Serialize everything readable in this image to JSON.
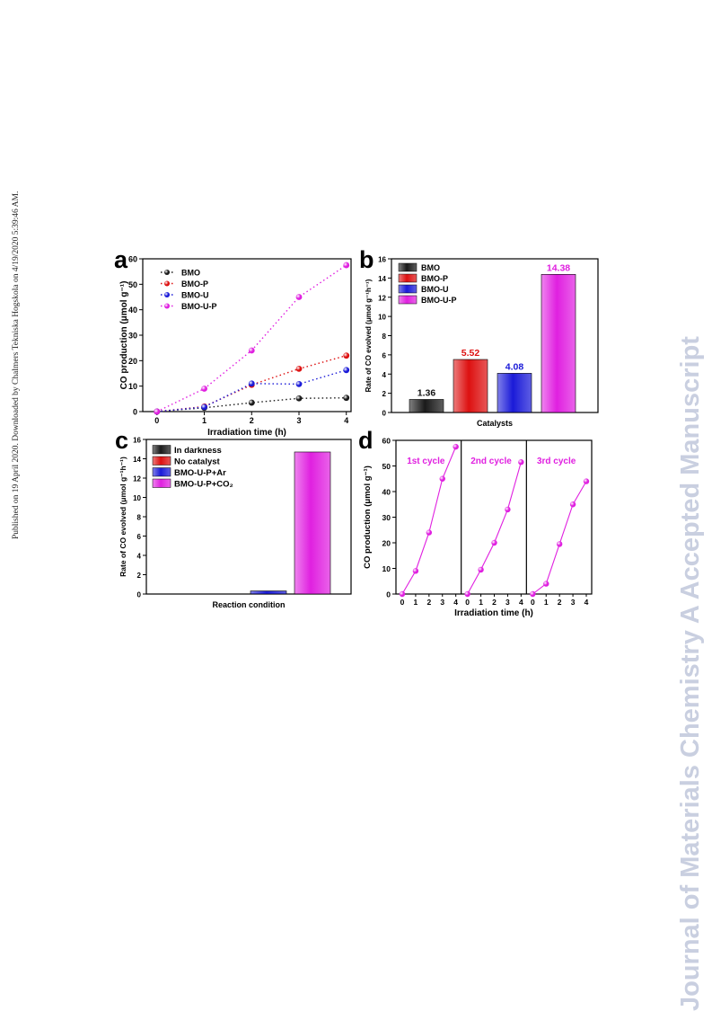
{
  "side_note": "Published on 19 April 2020. Downloaded by Chalmers Tekniska Hogskola on 4/19/2020 5:39:46 AM.",
  "watermark": "Journal of Materials Chemistry A Accepted Manuscript",
  "colors": {
    "black": "#1a1a1a",
    "red": "#dd1010",
    "blue": "#1a1ad8",
    "magenta": "#e020e0"
  },
  "chart_data": [
    {
      "panel": "a",
      "type": "scatter",
      "xlabel": "Irradiation time (h)",
      "ylabel": "CO production (μmol g⁻¹)",
      "xlim": [
        -0.3,
        4.1
      ],
      "ylim": [
        0,
        60
      ],
      "xticks": [
        "0",
        "1",
        "2",
        "3",
        "4"
      ],
      "yticks": [
        "0",
        "10",
        "20",
        "30",
        "40",
        "50",
        "60"
      ],
      "x": [
        0,
        1,
        2,
        3,
        4
      ],
      "legend_position": "top-left",
      "series": [
        {
          "name": "BMO",
          "color": "#1a1a1a",
          "values": [
            0,
            1.5,
            3.5,
            5.2,
            5.4
          ]
        },
        {
          "name": "BMO-P",
          "color": "#dd1010",
          "values": [
            0,
            2.0,
            10.5,
            16.8,
            22.0
          ]
        },
        {
          "name": "BMO-U",
          "color": "#1a1ad8",
          "values": [
            0,
            1.8,
            11.0,
            10.8,
            16.3
          ]
        },
        {
          "name": "BMO-U-P",
          "color": "#e020e0",
          "values": [
            0,
            9.0,
            24.0,
            45.0,
            57.5
          ]
        }
      ]
    },
    {
      "panel": "b",
      "type": "bar",
      "xlabel": "Catalysts",
      "ylabel": "Rate of CO evolved (μmol g⁻¹h⁻¹)",
      "ylim": [
        0,
        16
      ],
      "yticks": [
        "0",
        "2",
        "4",
        "6",
        "8",
        "10",
        "12",
        "14",
        "16"
      ],
      "legend_position": "top-left",
      "categories": [
        "BMO",
        "BMO-P",
        "BMO-U",
        "BMO-U-P"
      ],
      "values": [
        1.36,
        5.52,
        4.08,
        14.38
      ],
      "labels": [
        "1.36",
        "5.52",
        "4.08",
        "14.38"
      ],
      "colors": [
        "#1a1a1a",
        "#dd1010",
        "#1a1ad8",
        "#e020e0"
      ]
    },
    {
      "panel": "c",
      "type": "bar",
      "xlabel": "Reaction condition",
      "ylabel": "Rate of CO evolved (μmol g⁻¹h⁻¹)",
      "ylim": [
        0,
        16
      ],
      "yticks": [
        "0",
        "2",
        "4",
        "6",
        "8",
        "10",
        "12",
        "14",
        "16"
      ],
      "legend_position": "top-left",
      "categories": [
        "In darkness",
        "No catalyst",
        "BMO-U-P+Ar",
        "BMO-U-P+CO₂"
      ],
      "values": [
        0,
        0,
        0.32,
        14.7
      ],
      "colors": [
        "#1a1a1a",
        "#dd1010",
        "#1a1ad8",
        "#e020e0"
      ]
    },
    {
      "panel": "d",
      "type": "line",
      "xlabel": "Irradiation time (h)",
      "ylabel": "CO production (μmol g⁻¹)",
      "ylim": [
        0,
        60
      ],
      "yticks": [
        "0",
        "10",
        "20",
        "30",
        "40",
        "50",
        "60"
      ],
      "xticks": [
        "0",
        "1",
        "2",
        "3",
        "4"
      ],
      "x": [
        0,
        1,
        2,
        3,
        4
      ],
      "color": "#e020e0",
      "cycles": [
        {
          "name": "1st cycle",
          "values": [
            0,
            9.0,
            24.0,
            45.0,
            57.5
          ]
        },
        {
          "name": "2nd cycle",
          "values": [
            0,
            9.5,
            20.0,
            33.0,
            51.5
          ]
        },
        {
          "name": "3rd cycle",
          "values": [
            0,
            4.0,
            19.5,
            35.0,
            44.0
          ]
        }
      ]
    }
  ]
}
